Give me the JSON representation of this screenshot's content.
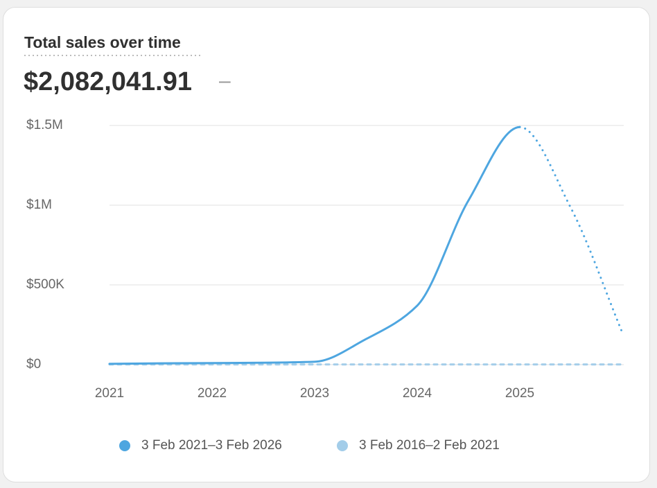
{
  "header": {
    "title": "Total sales over time",
    "value": "$2,082,041.91",
    "change": "–"
  },
  "chart_data": {
    "type": "line",
    "x": [
      2021,
      2021.5,
      2022,
      2022.5,
      2023,
      2023.5,
      2024,
      2024.5,
      2025,
      2025.5,
      2026
    ],
    "series": [
      {
        "name": "3 Feb 2021–3 Feb 2026",
        "color": "#4ea6e0",
        "style": "solid",
        "dotted_after": 2025,
        "values": [
          5000,
          8000,
          10000,
          12000,
          18000,
          160000,
          370000,
          1030000,
          1490000,
          980000,
          200000
        ]
      },
      {
        "name": "3 Feb 2016–2 Feb 2021",
        "color": "#a3cde9",
        "style": "dashed",
        "values": [
          1000,
          1000,
          1000,
          1000,
          1000,
          1000,
          1000,
          1000,
          1000,
          1000,
          1000
        ]
      }
    ],
    "xlim": [
      2021,
      2026
    ],
    "xticks": [
      2021,
      2022,
      2023,
      2024,
      2025
    ],
    "ylim": [
      0,
      1500000
    ],
    "yticks": [
      {
        "value": 0,
        "label": "$0"
      },
      {
        "value": 500000,
        "label": "$500K"
      },
      {
        "value": 1000000,
        "label": "$1M"
      },
      {
        "value": 1500000,
        "label": "$1.5M"
      }
    ],
    "grid": true
  }
}
